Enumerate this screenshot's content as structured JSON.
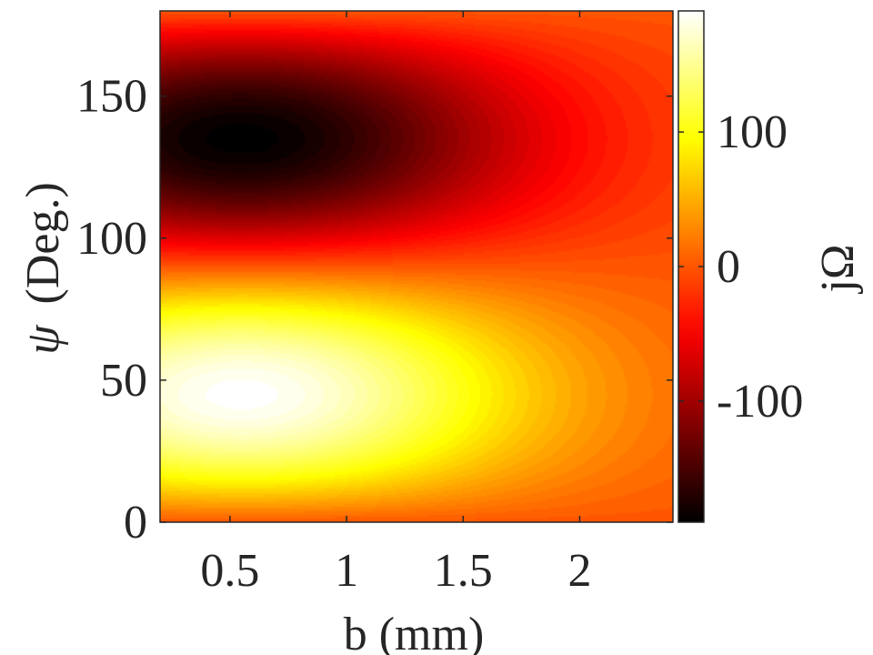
{
  "chart_data": {
    "type": "heatmap",
    "title": "",
    "xlabel": "b (mm)",
    "ylabel_symbol": "ψ",
    "ylabel_text": "(Deg.)",
    "xlim": [
      0.2,
      2.4
    ],
    "ylim": [
      0,
      180
    ],
    "x_ticks": [
      0.5,
      1,
      1.5,
      2
    ],
    "x_tick_labels": [
      "0.5",
      "1",
      "1.5",
      "2"
    ],
    "y_ticks": [
      0,
      50,
      100,
      150
    ],
    "y_tick_labels": [
      "0",
      "50",
      "100",
      "150"
    ],
    "colorbar": {
      "label": "jΩ",
      "colormap": "hot",
      "range": [
        -190,
        190
      ],
      "ticks": [
        -100,
        0,
        100
      ],
      "tick_labels": [
        "-100",
        "0",
        "100"
      ]
    },
    "field": {
      "description_of_function": "value = A * sin(2*psi) * x * exp(-x^2/(2*s^2)) scaled; peak magnitude near b≈0.55 mm, psi≈45° (max) and psi≈135° (min)",
      "amplitude": 190,
      "peak_b": 0.55,
      "samples": [
        {
          "b": 0.5,
          "psi": 45,
          "value": 188
        },
        {
          "b": 0.5,
          "psi": 135,
          "value": -188
        },
        {
          "b": 1.0,
          "psi": 45,
          "value": 150
        },
        {
          "b": 1.0,
          "psi": 135,
          "value": -150
        },
        {
          "b": 1.5,
          "psi": 45,
          "value": 85
        },
        {
          "b": 1.5,
          "psi": 135,
          "value": -85
        },
        {
          "b": 2.0,
          "psi": 45,
          "value": 35
        },
        {
          "b": 2.0,
          "psi": 135,
          "value": -35
        },
        {
          "b": 1.0,
          "psi": 90,
          "value": 0
        },
        {
          "b": 1.0,
          "psi": 0,
          "value": 0
        },
        {
          "b": 1.0,
          "psi": 180,
          "value": 0
        }
      ]
    },
    "grid": false
  }
}
